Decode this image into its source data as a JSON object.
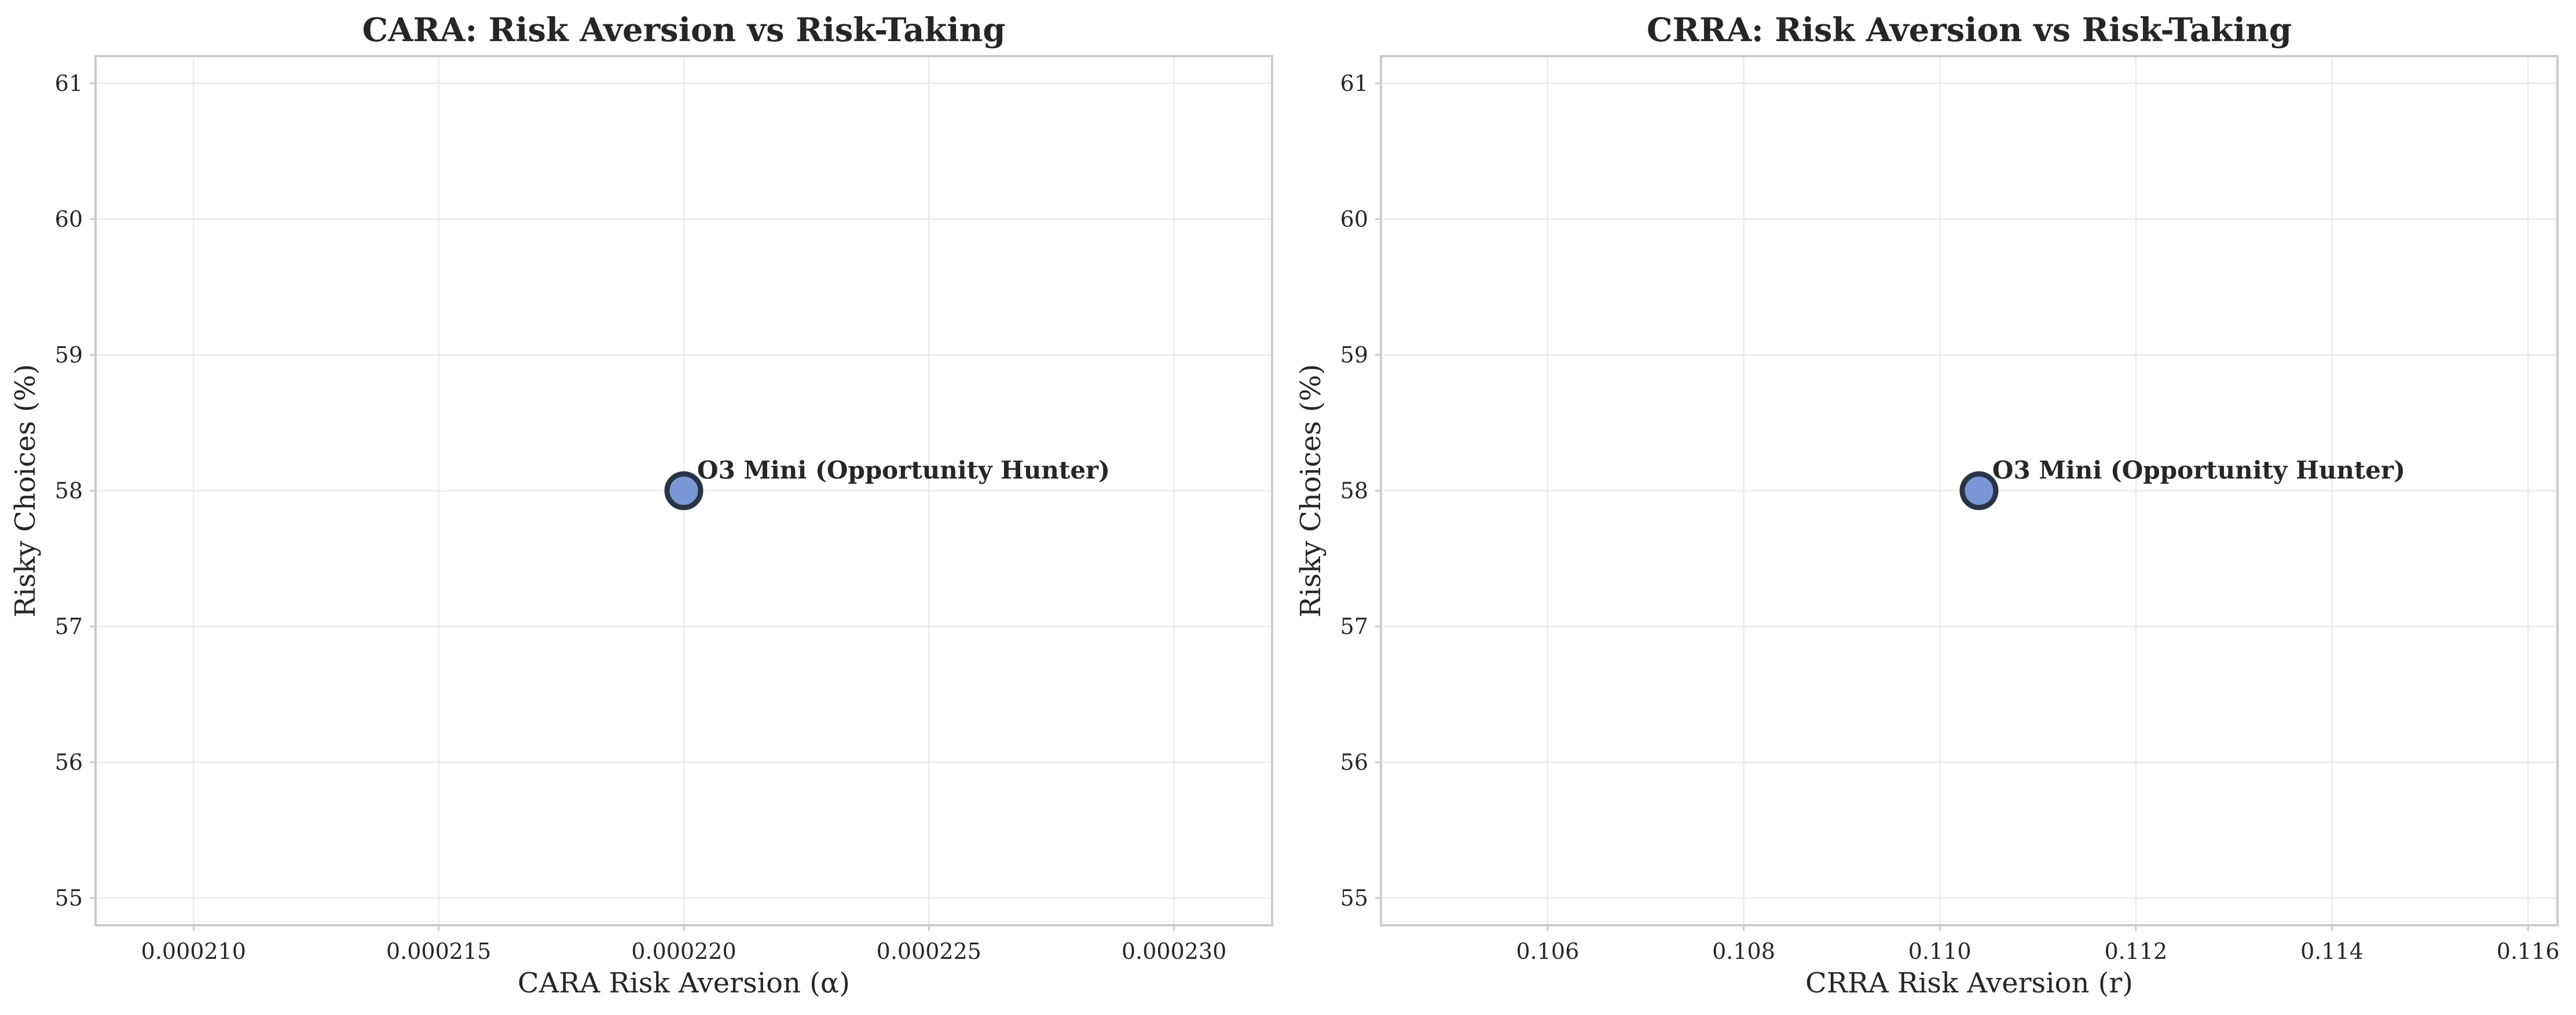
{
  "chart_data": [
    {
      "type": "scatter",
      "title": "CARA: Risk Aversion vs Risk-Taking",
      "xlabel": "CARA Risk Aversion (α)",
      "ylabel": "Risky Choices (%)",
      "xlim": [
        0.000208,
        0.000232
      ],
      "ylim": [
        54.8,
        61.2
      ],
      "x_ticks": [
        0.00021,
        0.000215,
        0.00022,
        0.000225,
        0.00023
      ],
      "x_tick_labels": [
        "0.000210",
        "0.000215",
        "0.000220",
        "0.000225",
        "0.000230"
      ],
      "y_ticks": [
        55,
        56,
        57,
        58,
        59,
        60,
        61
      ],
      "y_tick_labels": [
        "55",
        "56",
        "57",
        "58",
        "59",
        "60",
        "61"
      ],
      "grid": true,
      "points": [
        {
          "label": "O3 Mini (Opportunity Hunter)",
          "x": 0.00022,
          "y": 58,
          "color": "#7b96d4"
        }
      ]
    },
    {
      "type": "scatter",
      "title": "CRRA: Risk Aversion vs Risk-Taking",
      "xlabel": "CRRA Risk Aversion (r)",
      "ylabel": "Risky Choices (%)",
      "xlim": [
        0.1043,
        0.1163
      ],
      "ylim": [
        54.8,
        61.2
      ],
      "x_ticks": [
        0.106,
        0.108,
        0.11,
        0.112,
        0.114,
        0.116
      ],
      "x_tick_labels": [
        "0.106",
        "0.108",
        "0.110",
        "0.112",
        "0.114",
        "0.116"
      ],
      "y_ticks": [
        55,
        56,
        57,
        58,
        59,
        60,
        61
      ],
      "y_tick_labels": [
        "55",
        "56",
        "57",
        "58",
        "59",
        "60",
        "61"
      ],
      "grid": true,
      "points": [
        {
          "label": "O3 Mini (Opportunity Hunter)",
          "x": 0.1104,
          "y": 58,
          "color": "#7b96d4"
        }
      ]
    }
  ]
}
